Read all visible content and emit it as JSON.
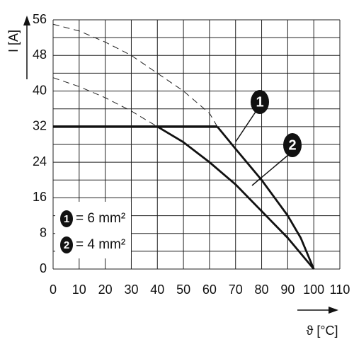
{
  "chart_data": {
    "type": "line",
    "y_label": "I [A]",
    "x_label": "ϑ [°C]",
    "xlim": [
      0,
      110
    ],
    "xticks": [
      0,
      10,
      20,
      30,
      40,
      50,
      60,
      70,
      80,
      90,
      100,
      110
    ],
    "ylim": [
      0,
      56
    ],
    "yticks": [
      0,
      8,
      16,
      24,
      32,
      40,
      48,
      56
    ],
    "y_minor_grid": [
      4,
      12,
      20,
      28,
      36,
      44,
      52
    ],
    "grid": true,
    "series": [
      {
        "style": "dashed",
        "color": "#222",
        "x": [
          0,
          10,
          20,
          30,
          40,
          50,
          60,
          63
        ],
        "values": [
          55,
          53.5,
          51,
          48,
          44,
          40,
          35,
          32
        ]
      },
      {
        "style": "solid",
        "color": "#111",
        "x": [
          63,
          70,
          80,
          90,
          95,
          100
        ],
        "values": [
          32,
          27,
          20,
          12,
          7,
          0
        ]
      },
      {
        "style": "dashed",
        "color": "#222",
        "x": [
          0,
          10,
          20,
          30,
          40
        ],
        "values": [
          43,
          41,
          38.5,
          35.5,
          32
        ]
      },
      {
        "style": "solid",
        "color": "#111",
        "x": [
          40,
          50,
          60,
          70,
          80,
          90,
          95,
          100
        ],
        "values": [
          32,
          28.5,
          24,
          19,
          13,
          7,
          3.5,
          0
        ]
      },
      {
        "style": "limit",
        "color": "#111",
        "x": [
          0,
          63
        ],
        "values": [
          32,
          32
        ]
      }
    ],
    "callouts": [
      "1",
      "2"
    ],
    "legend": [
      {
        "marker": "1",
        "label": "= 6 mm²"
      },
      {
        "marker": "2",
        "label": "= 4 mm²"
      }
    ]
  }
}
